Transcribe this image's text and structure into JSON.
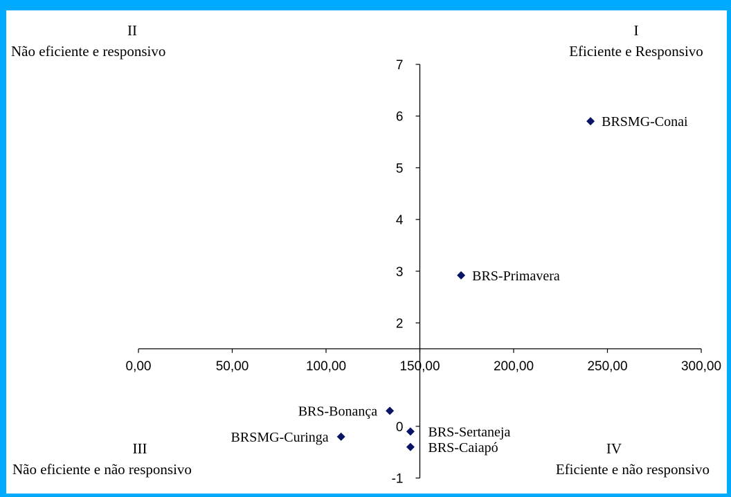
{
  "chart_data": {
    "type": "scatter",
    "title": "",
    "xlabel": "",
    "ylabel": "",
    "xlim": [
      0,
      300
    ],
    "ylim": [
      -1,
      7
    ],
    "x_cross_at_y": 1.5,
    "y_cross_at_x": 150,
    "x_tick_labels": [
      "0,00",
      "50,00",
      "100,00",
      "150,00",
      "200,00",
      "250,00",
      "300,00"
    ],
    "y_tick_labels": [
      "-1",
      "0",
      "2",
      "3",
      "4",
      "5",
      "6",
      "7"
    ],
    "points": [
      {
        "label": "BRSMG-Conai",
        "x": 241,
        "y": 5.9
      },
      {
        "label": "BRS-Primavera",
        "x": 172,
        "y": 2.92
      },
      {
        "label": "BRS-Bonança",
        "x": 134,
        "y": 0.3
      },
      {
        "label": "BRS-Sertaneja",
        "x": 145,
        "y": -0.1
      },
      {
        "label": "BRSMG-Curinga",
        "x": 108,
        "y": -0.2
      },
      {
        "label": "BRS-Caiapó",
        "x": 145,
        "y": -0.4
      }
    ],
    "marker_color": "#0a1464",
    "quadrants": [
      {
        "numeral": "I",
        "text": "Eficiente e Responsivo"
      },
      {
        "numeral": "II",
        "text": "Não eficiente e responsivo"
      },
      {
        "numeral": "III",
        "text": "Não eficiente e  não responsivo"
      },
      {
        "numeral": "IV",
        "text": "Eficiente e  não responsivo"
      }
    ]
  },
  "colors": {
    "border": "#00aaff",
    "background": "#ffffff",
    "axis": "#000000"
  }
}
